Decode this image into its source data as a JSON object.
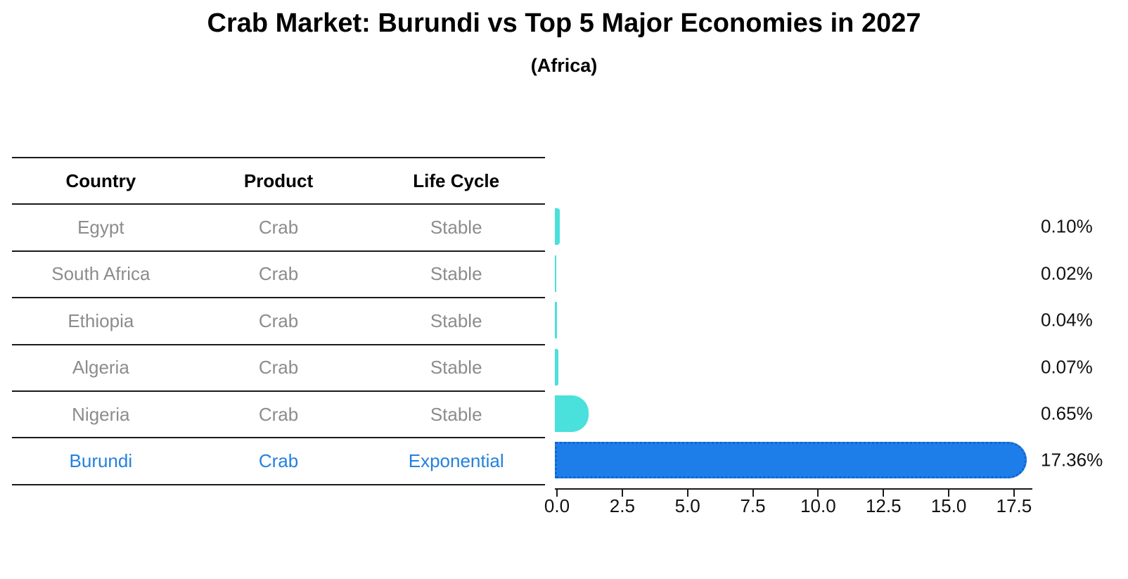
{
  "title": "Crab Market: Burundi vs Top 5 Major Economies in 2027",
  "subtitle": "(Africa)",
  "table": {
    "columns": [
      "Country",
      "Product",
      "Life Cycle"
    ],
    "rows": [
      {
        "country": "Egypt",
        "product": "Crab",
        "life_cycle": "Stable",
        "highlight": false
      },
      {
        "country": "South Africa",
        "product": "Crab",
        "life_cycle": "Stable",
        "highlight": false
      },
      {
        "country": "Ethiopia",
        "product": "Crab",
        "life_cycle": "Stable",
        "highlight": false
      },
      {
        "country": "Algeria",
        "product": "Crab",
        "life_cycle": "Stable",
        "highlight": false
      },
      {
        "country": "Nigeria",
        "product": "Crab",
        "life_cycle": "Stable",
        "highlight": false
      },
      {
        "country": "Burundi",
        "product": "Crab",
        "life_cycle": "Exponential",
        "highlight": true
      }
    ]
  },
  "chart_data": {
    "type": "bar",
    "orientation": "horizontal",
    "title": "Crab Market: Burundi vs Top 5 Major Economies in 2027",
    "subtitle": "(Africa)",
    "categories": [
      "Egypt",
      "South Africa",
      "Ethiopia",
      "Algeria",
      "Nigeria",
      "Burundi"
    ],
    "values": [
      0.1,
      0.02,
      0.04,
      0.07,
      0.65,
      17.36
    ],
    "value_labels": [
      "0.10%",
      "0.02%",
      "0.04%",
      "0.07%",
      "0.65%",
      "17.36%"
    ],
    "unit": "%",
    "highlight_index": 5,
    "x_ticks": [
      0.0,
      2.5,
      5.0,
      7.5,
      10.0,
      12.5,
      15.0,
      17.5
    ],
    "x_tick_labels": [
      "0.0",
      "2.5",
      "5.0",
      "7.5",
      "10.0",
      "12.5",
      "15.0",
      "17.5"
    ],
    "xlim": [
      0,
      18.3
    ],
    "grid": false,
    "legend": false
  },
  "colors": {
    "bar_default": "#4ae0db",
    "bar_highlight": "#1e7ee9",
    "bar_highlight_edge": "#0e66cf",
    "text_muted": "#8c8c8c",
    "text_highlight": "#2480df",
    "axis": "#1a1a1a"
  }
}
